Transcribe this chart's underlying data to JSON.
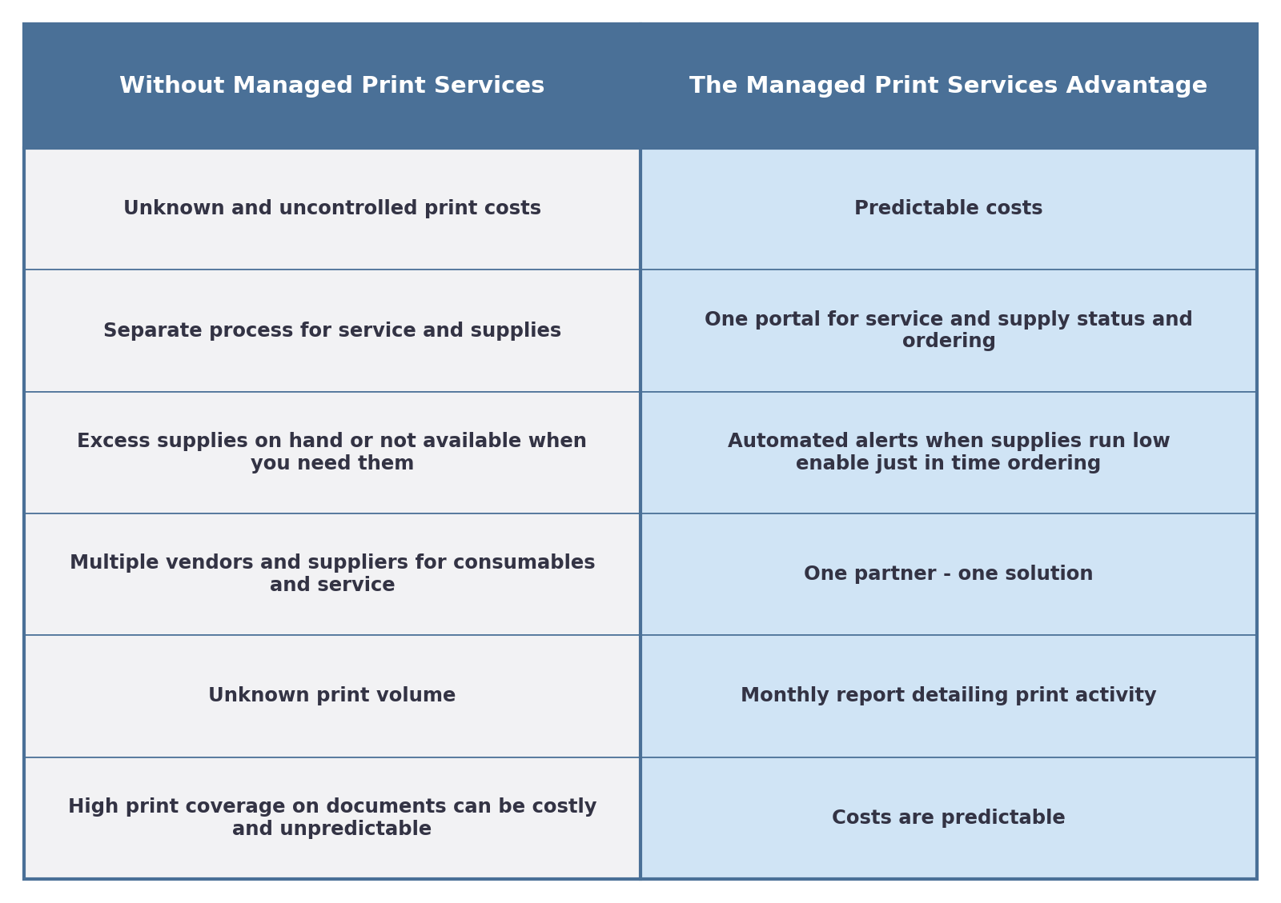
{
  "header_left": "Without Managed Print Services",
  "header_right": "The Managed Print Services Advantage",
  "rows": [
    [
      "Unknown and uncontrolled print costs",
      "Predictable costs"
    ],
    [
      "Separate process for service and supplies",
      "One portal for service and supply status and\nordering"
    ],
    [
      "Excess supplies on hand or not available when\nyou need them",
      "Automated alerts when supplies run low\nenable just in time ordering"
    ],
    [
      "Multiple vendors and suppliers for consumables\nand service",
      "One partner - one solution"
    ],
    [
      "Unknown print volume",
      "Monthly report detailing print activity"
    ],
    [
      "High print coverage on documents can be costly\nand unpredictable",
      "Costs are predictable"
    ]
  ],
  "header_bg": "#4a7097",
  "row_left_bg": "#f2f2f4",
  "row_right_bg": "#d0e4f5",
  "header_text_color": "#ffffff",
  "row_text_color": "#333344",
  "divider_color": "#4a7097",
  "header_fontsize": 21,
  "row_fontsize": 17.5,
  "fig_width": 16.0,
  "fig_height": 11.29
}
